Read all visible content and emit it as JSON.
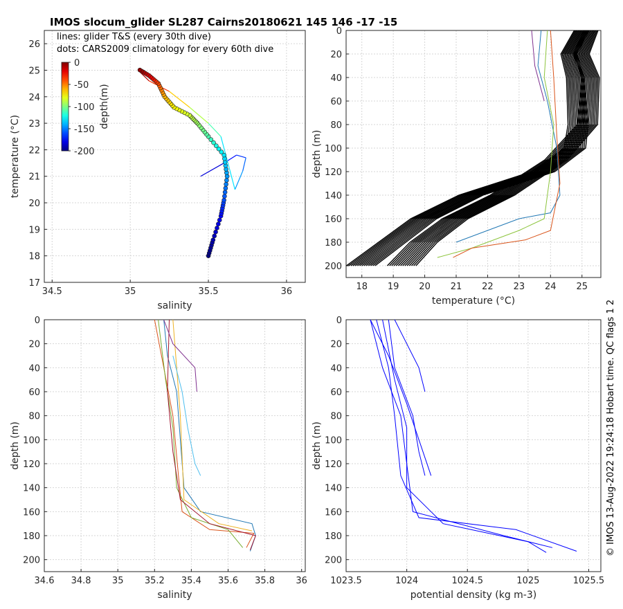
{
  "title": "IMOS slocum_glider SL287 Cairns20180621 145  146  -17  -15",
  "side_note": "© IMOS 13-Aug-2022 19:24:18 Hobart time. QC flags 1  2",
  "chart_data": [
    {
      "id": "ts",
      "type": "scatter",
      "xlabel": "salinity",
      "ylabel": "temperature (°C)",
      "xlim": [
        34.45,
        36.12
      ],
      "ylim": [
        17,
        26.5
      ],
      "xticks": [
        34.5,
        35,
        35.5,
        36
      ],
      "yticks": [
        17,
        18,
        19,
        20,
        21,
        22,
        23,
        24,
        25,
        26
      ],
      "grid": true,
      "legend_lines": [
        "lines: glider T&S (every 30th dive)",
        "dots: CARS2009 climatology for every 60th dive"
      ],
      "colorbar": {
        "label": "depth(m)",
        "ticks": [
          0,
          -50,
          -100,
          -150,
          -200
        ],
        "range": [
          -200,
          0
        ]
      },
      "climatology_path": [
        [
          35.5,
          18.0,
          -200
        ],
        [
          35.53,
          18.6,
          -190
        ],
        [
          35.58,
          19.5,
          -175
        ],
        [
          35.6,
          20.1,
          -160
        ],
        [
          35.62,
          21.0,
          -145
        ],
        [
          35.6,
          21.8,
          -130
        ],
        [
          35.5,
          22.5,
          -110
        ],
        [
          35.43,
          23.0,
          -95
        ],
        [
          35.38,
          23.3,
          -85
        ],
        [
          35.28,
          23.6,
          -75
        ],
        [
          35.22,
          24.0,
          -60
        ],
        [
          35.18,
          24.5,
          -40
        ],
        [
          35.12,
          24.8,
          -20
        ],
        [
          35.05,
          25.05,
          0
        ]
      ],
      "glider_path": [
        [
          35.45,
          21.0,
          -190
        ],
        [
          35.6,
          21.5,
          -175
        ],
        [
          35.68,
          21.8,
          -170
        ],
        [
          35.74,
          21.7,
          -160
        ],
        [
          35.72,
          21.2,
          -150
        ],
        [
          35.67,
          20.5,
          -140
        ],
        [
          35.58,
          22.5,
          -120
        ],
        [
          35.5,
          23.0,
          -100
        ],
        [
          35.38,
          23.6,
          -80
        ],
        [
          35.25,
          24.2,
          -50
        ],
        [
          35.12,
          24.6,
          -20
        ],
        [
          35.05,
          25.0,
          0
        ]
      ]
    },
    {
      "id": "depth-temperature",
      "type": "line",
      "xlabel": "temperature (°C)",
      "ylabel": "depth (m)",
      "xlim": [
        17.5,
        25.6
      ],
      "ylim": [
        0,
        210
      ],
      "xticks": [
        18,
        19,
        20,
        21,
        22,
        23,
        24,
        25
      ],
      "yticks": [
        0,
        20,
        40,
        60,
        80,
        100,
        120,
        140,
        160,
        180,
        200
      ],
      "grid": true,
      "climatology_band_a": [
        [
          25.0,
          0
        ],
        [
          24.6,
          20
        ],
        [
          24.8,
          40
        ],
        [
          24.9,
          80
        ],
        [
          24.8,
          100
        ],
        [
          23.8,
          120
        ],
        [
          21.5,
          140
        ],
        [
          20.0,
          160
        ],
        [
          19.0,
          180
        ],
        [
          18.0,
          200
        ]
      ],
      "climatology_band_b": [
        [
          25.3,
          0
        ],
        [
          25.0,
          20
        ],
        [
          25.3,
          40
        ],
        [
          25.2,
          80
        ],
        [
          24.2,
          110
        ],
        [
          22.5,
          140
        ],
        [
          21.0,
          160
        ],
        [
          20.0,
          180
        ],
        [
          19.3,
          200
        ]
      ],
      "glider_profiles": [
        {
          "color": "#1f77b4",
          "points": [
            [
              23.7,
              0
            ],
            [
              23.6,
              30
            ],
            [
              23.9,
              60
            ],
            [
              24.2,
              100
            ],
            [
              24.3,
              140
            ],
            [
              24.0,
              155
            ],
            [
              23.0,
              160
            ],
            [
              22.0,
              170
            ],
            [
              21.0,
              180
            ]
          ]
        },
        {
          "color": "#8cc43c",
          "points": [
            [
              23.9,
              0
            ],
            [
              23.8,
              40
            ],
            [
              24.1,
              80
            ],
            [
              24.0,
              120
            ],
            [
              23.8,
              160
            ],
            [
              23.0,
              170
            ],
            [
              21.5,
              185
            ],
            [
              20.4,
              193
            ]
          ]
        },
        {
          "color": "#d95319",
          "points": [
            [
              24.0,
              0
            ],
            [
              24.1,
              40
            ],
            [
              24.2,
              90
            ],
            [
              24.3,
              130
            ],
            [
              24.0,
              170
            ],
            [
              23.2,
              178
            ],
            [
              21.5,
              185
            ],
            [
              20.9,
              193
            ]
          ]
        },
        {
          "color": "#7e2f8e",
          "points": [
            [
              23.4,
              0
            ],
            [
              23.5,
              30
            ],
            [
              23.8,
              60
            ]
          ]
        }
      ]
    },
    {
      "id": "depth-salinity",
      "type": "line",
      "xlabel": "salinity",
      "ylabel": "depth (m)",
      "xlim": [
        34.6,
        36.02
      ],
      "ylim": [
        0,
        210
      ],
      "xticks": [
        34.6,
        34.8,
        35,
        35.2,
        35.4,
        35.6,
        35.8,
        36
      ],
      "yticks": [
        0,
        20,
        40,
        60,
        80,
        100,
        120,
        140,
        160,
        180,
        200
      ],
      "grid": true,
      "profiles": [
        {
          "color": "#1f77b4",
          "points": [
            [
              35.25,
              0
            ],
            [
              35.27,
              30
            ],
            [
              35.32,
              60
            ],
            [
              35.34,
              100
            ],
            [
              35.36,
              140
            ],
            [
              35.45,
              160
            ],
            [
              35.73,
              170
            ],
            [
              35.75,
              180
            ],
            [
              35.72,
              193
            ]
          ]
        },
        {
          "color": "#d95319",
          "points": [
            [
              35.2,
              0
            ],
            [
              35.25,
              40
            ],
            [
              35.3,
              80
            ],
            [
              35.33,
              130
            ],
            [
              35.35,
              160
            ],
            [
              35.5,
              175
            ],
            [
              35.74,
              178
            ],
            [
              35.7,
              190
            ]
          ]
        },
        {
          "color": "#edb120",
          "points": [
            [
              35.3,
              0
            ],
            [
              35.32,
              40
            ],
            [
              35.34,
              80
            ],
            [
              35.36,
              150
            ],
            [
              35.55,
              170
            ],
            [
              35.73,
              176
            ]
          ]
        },
        {
          "color": "#77ac30",
          "points": [
            [
              35.22,
              0
            ],
            [
              35.26,
              50
            ],
            [
              35.3,
              90
            ],
            [
              35.32,
              140
            ],
            [
              35.4,
              165
            ],
            [
              35.6,
              175
            ],
            [
              35.68,
              190
            ]
          ]
        },
        {
          "color": "#a2142f",
          "points": [
            [
              35.28,
              0
            ],
            [
              35.27,
              60
            ],
            [
              35.3,
              110
            ],
            [
              35.34,
              150
            ],
            [
              35.5,
              170
            ],
            [
              35.75,
              180
            ],
            [
              35.72,
              192
            ]
          ]
        },
        {
          "color": "#4dbeee",
          "points": [
            [
              35.3,
              30
            ],
            [
              35.35,
              60
            ],
            [
              35.38,
              90
            ],
            [
              35.42,
              120
            ],
            [
              35.45,
              130
            ]
          ]
        },
        {
          "color": "#7e2f8e",
          "points": [
            [
              35.25,
              0
            ],
            [
              35.3,
              20
            ],
            [
              35.42,
              40
            ],
            [
              35.43,
              60
            ]
          ]
        }
      ]
    },
    {
      "id": "depth-density",
      "type": "line",
      "xlabel": "potential density (kg m-3)",
      "ylabel": "depth (m)",
      "xlim": [
        1023.5,
        1025.6
      ],
      "ylim": [
        0,
        210
      ],
      "xticks": [
        1023.5,
        1024,
        1024.5,
        1025,
        1025.5
      ],
      "yticks": [
        0,
        20,
        40,
        60,
        80,
        100,
        120,
        140,
        160,
        180,
        200
      ],
      "grid": true,
      "series_color": "#0000ff",
      "profiles": [
        [
          [
            1023.7,
            0
          ],
          [
            1023.8,
            40
          ],
          [
            1023.95,
            80
          ],
          [
            1024.0,
            120
          ],
          [
            1024.05,
            160
          ],
          [
            1024.8,
            180
          ],
          [
            1025.2,
            190
          ]
        ],
        [
          [
            1023.75,
            0
          ],
          [
            1023.85,
            40
          ],
          [
            1023.9,
            80
          ],
          [
            1023.95,
            130
          ],
          [
            1024.1,
            165
          ],
          [
            1024.9,
            175
          ],
          [
            1025.4,
            193
          ]
        ],
        [
          [
            1023.8,
            0
          ],
          [
            1023.9,
            50
          ],
          [
            1024.0,
            90
          ],
          [
            1024.0,
            140
          ],
          [
            1024.3,
            170
          ],
          [
            1025.0,
            185
          ],
          [
            1025.15,
            194
          ]
        ],
        [
          [
            1023.7,
            0
          ],
          [
            1023.85,
            30
          ],
          [
            1024.0,
            70
          ],
          [
            1024.1,
            100
          ],
          [
            1024.2,
            130
          ]
        ],
        [
          [
            1023.85,
            0
          ],
          [
            1023.9,
            40
          ],
          [
            1024.05,
            80
          ],
          [
            1024.1,
            110
          ],
          [
            1024.15,
            130
          ]
        ],
        [
          [
            1023.9,
            0
          ],
          [
            1024.0,
            20
          ],
          [
            1024.1,
            40
          ],
          [
            1024.15,
            60
          ]
        ]
      ]
    }
  ]
}
